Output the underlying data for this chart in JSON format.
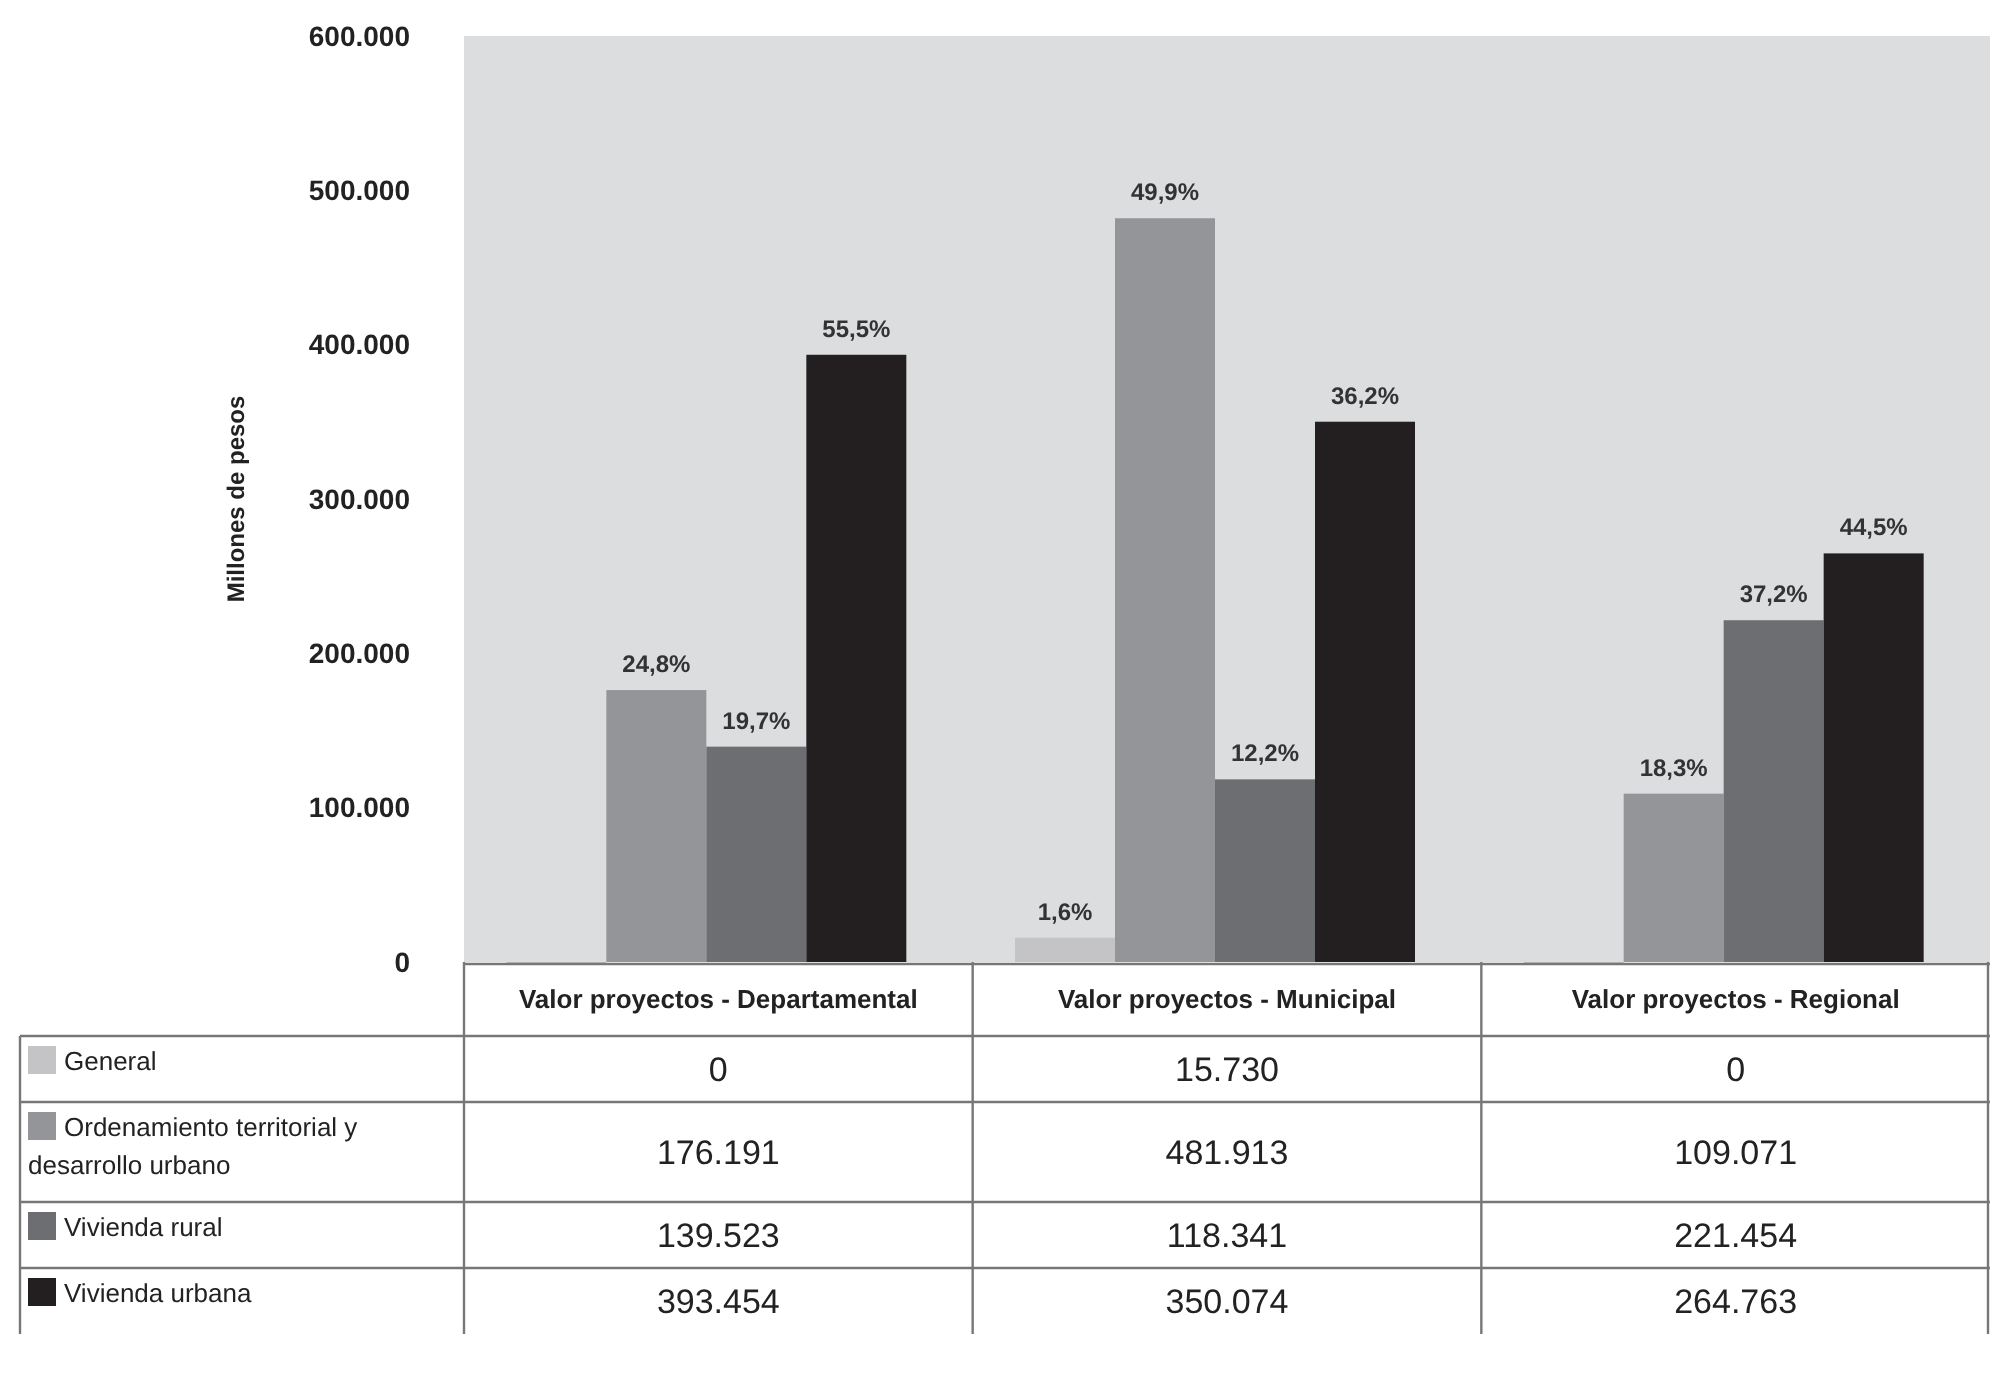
{
  "chart_data": {
    "type": "bar",
    "ylabel": "Millones de pesos",
    "categories": [
      "Valor proyectos - Departamental",
      "Valor proyectos - Municipal",
      "Valor proyectos - Regional"
    ],
    "series": [
      {
        "name": "General",
        "color": "#c4c4c6",
        "values": [
          0,
          15730,
          0
        ],
        "value_labels": [
          "0",
          "15.730",
          "0"
        ]
      },
      {
        "name": "Ordenamiento territorial y desarrollo urbano",
        "color": "#939598",
        "values": [
          176191,
          481913,
          109071
        ],
        "value_labels": [
          "176.191",
          "481.913",
          "109.071"
        ]
      },
      {
        "name": "Vivienda rural",
        "color": "#6d6e71",
        "values": [
          139523,
          118341,
          221454
        ],
        "value_labels": [
          "139.523",
          "118.341",
          "221.454"
        ]
      },
      {
        "name": "Vivienda urbana",
        "color": "#231f20",
        "values": [
          393454,
          350074,
          264763
        ],
        "value_labels": [
          "393.454",
          "350.074",
          "264.763"
        ]
      }
    ],
    "annotations": [
      "24,8%",
      "19,7%",
      "55,5%",
      "1,6%",
      "49,9%",
      "12,2%",
      "36,2%",
      "18,3%",
      "37,2%",
      "44,5%"
    ],
    "ylim": [
      0,
      600000
    ],
    "yticks": [
      {
        "value": 0,
        "label": "0"
      },
      {
        "value": 100000,
        "label": "100.000"
      },
      {
        "value": 200000,
        "label": "200.000"
      },
      {
        "value": 300000,
        "label": "300.000"
      },
      {
        "value": 400000,
        "label": "400.000"
      },
      {
        "value": 500000,
        "label": "500.000"
      },
      {
        "value": 600000,
        "label": "600.000"
      }
    ],
    "grid": false,
    "legend": "bottom",
    "data_labels": true
  }
}
